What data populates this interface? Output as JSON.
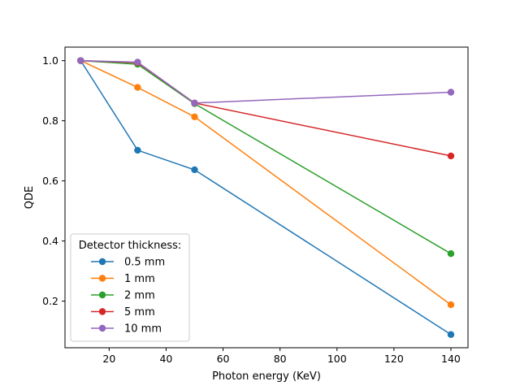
{
  "chart_data": {
    "type": "line",
    "xlabel": "Photon energy (KeV)",
    "ylabel": "QDE",
    "xlim": [
      4.5,
      146
    ],
    "ylim": [
      0.045,
      1.045
    ],
    "xticks": [
      20,
      40,
      60,
      80,
      100,
      120,
      140
    ],
    "yticks": [
      0.2,
      0.4,
      0.6,
      0.8,
      1.0
    ],
    "ytick_labels": [
      "0.2",
      "0.4",
      "0.6",
      "0.8",
      "1.0"
    ],
    "x": [
      10,
      30,
      50,
      140
    ],
    "legend": {
      "title": "Detector thickness:",
      "position": "lower-left"
    },
    "grid": false,
    "series": [
      {
        "name": "0.5 mm",
        "color": "#1f77b4",
        "values": [
          1.0,
          0.702,
          0.637,
          0.089
        ]
      },
      {
        "name": "1 mm",
        "color": "#ff7f0e",
        "values": [
          1.0,
          0.911,
          0.813,
          0.188
        ]
      },
      {
        "name": "2 mm",
        "color": "#2ca02c",
        "values": [
          1.0,
          0.988,
          0.857,
          0.358
        ]
      },
      {
        "name": "5 mm",
        "color": "#d62728",
        "values": [
          1.0,
          0.993,
          0.859,
          0.683
        ]
      },
      {
        "name": "10 mm",
        "color": "#9467bd",
        "values": [
          1.0,
          0.995,
          0.859,
          0.895
        ]
      }
    ]
  }
}
